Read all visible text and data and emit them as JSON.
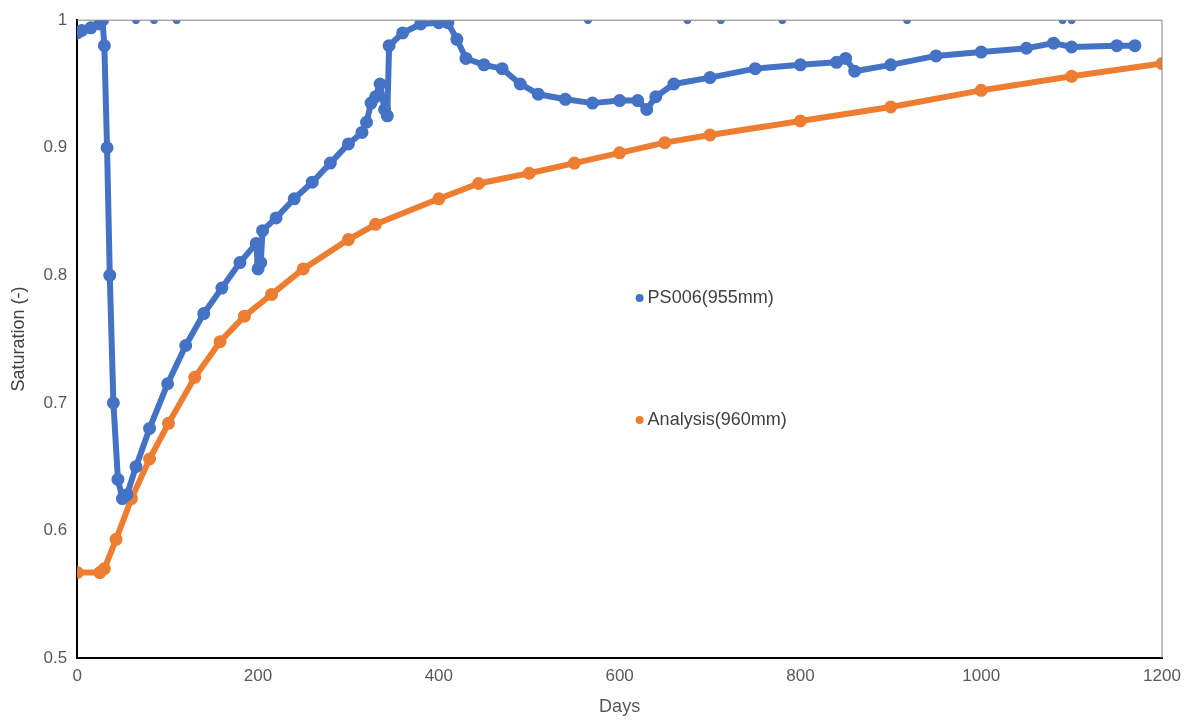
{
  "chart_data": {
    "type": "line",
    "xlabel": "Days",
    "ylabel": "Saturation (-)",
    "xlim": [
      0,
      1200
    ],
    "xticks": [
      0,
      200,
      400,
      600,
      800,
      1000,
      1200
    ],
    "ylim": [
      0.5,
      1
    ],
    "yticks": [
      0.5,
      0.6,
      0.7,
      0.8,
      0.9,
      1
    ],
    "grid": false,
    "legend": "center",
    "marker": "circle",
    "series": [
      {
        "name": "PS006(955mm)",
        "color": "#4472c4",
        "x": [
          0,
          5,
          15,
          25,
          28,
          30,
          33,
          36,
          40,
          45,
          50,
          55,
          65,
          80,
          100,
          120,
          140,
          160,
          180,
          198,
          200,
          203,
          205,
          220,
          240,
          260,
          280,
          300,
          315,
          320,
          325,
          330,
          335,
          340,
          343,
          345,
          360,
          380,
          400,
          410,
          420,
          430,
          450,
          470,
          490,
          510,
          540,
          570,
          600,
          620,
          630,
          640,
          660,
          700,
          750,
          800,
          840,
          850,
          860,
          900,
          950,
          1000,
          1050,
          1080,
          1100,
          1150,
          1170
        ],
        "values": [
          0.99,
          0.992,
          0.994,
          0.997,
          1.0,
          0.98,
          0.9,
          0.8,
          0.7,
          0.64,
          0.625,
          0.628,
          0.65,
          0.68,
          0.715,
          0.745,
          0.77,
          0.79,
          0.81,
          0.825,
          0.805,
          0.81,
          0.835,
          0.845,
          0.86,
          0.873,
          0.888,
          0.903,
          0.912,
          0.92,
          0.935,
          0.94,
          0.95,
          0.93,
          0.925,
          0.98,
          0.99,
          0.997,
          0.998,
          0.998,
          0.985,
          0.97,
          0.965,
          0.962,
          0.95,
          0.942,
          0.938,
          0.935,
          0.937,
          0.937,
          0.93,
          0.94,
          0.95,
          0.955,
          0.962,
          0.965,
          0.967,
          0.97,
          0.96,
          0.965,
          0.972,
          0.975,
          0.978,
          0.982,
          0.979,
          0.98,
          0.98
        ]
      },
      {
        "type": "scatter",
        "color": "#4472c4",
        "x": [
          65,
          85,
          110,
          565,
          675,
          712,
          780,
          918,
          1090,
          1100
        ],
        "values": [
          1,
          1,
          1,
          1,
          1,
          1,
          1,
          1,
          1,
          1
        ]
      },
      {
        "name": "Analysis(960mm)",
        "color": "#ed7d31",
        "x": [
          0,
          25,
          30,
          43,
          60,
          80,
          101,
          130,
          158,
          185,
          215,
          250,
          300,
          330,
          400,
          444,
          500,
          550,
          600,
          650,
          700,
          800,
          900,
          1000,
          1100,
          1200
        ],
        "values": [
          0.567,
          0.567,
          0.57,
          0.593,
          0.625,
          0.656,
          0.684,
          0.72,
          0.748,
          0.768,
          0.785,
          0.805,
          0.828,
          0.84,
          0.86,
          0.872,
          0.88,
          0.888,
          0.896,
          0.904,
          0.91,
          0.921,
          0.932,
          0.945,
          0.956,
          0.966
        ]
      }
    ]
  }
}
